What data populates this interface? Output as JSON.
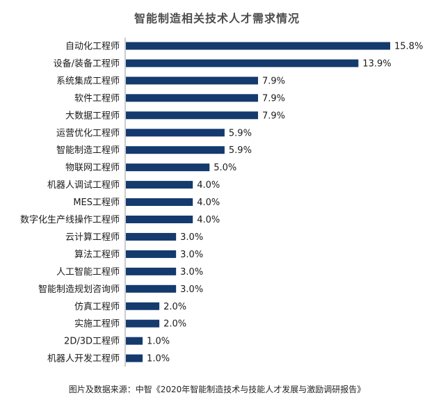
{
  "title": "智能制造相关技术人才需求情况",
  "source": "图片及数据来源：中智《2020年智能制造技术与技能人才发展与激励调研报告》",
  "colors": {
    "bar": "#143a6e",
    "axis": "#9a9a9a"
  },
  "chart_data": {
    "type": "bar",
    "orientation": "horizontal",
    "title": "智能制造相关技术人才需求情况",
    "categories": [
      "自动化工程师",
      "设备/装备工程师",
      "系统集成工程师",
      "软件工程师",
      "大数据工程师",
      "运营优化工程师",
      "智能制造工程师",
      "物联网工程师",
      "机器人调试工程师",
      "MES工程师",
      "数字化生产线操作工程师",
      "云计算工程师",
      "算法工程师",
      "人工智能工程师",
      "智能制造规划咨询师",
      "仿真工程师",
      "实施工程师",
      "2D/3D工程师",
      "机器人开发工程师"
    ],
    "values": [
      15.8,
      13.9,
      7.9,
      7.9,
      7.9,
      5.9,
      5.9,
      5.0,
      4.0,
      4.0,
      4.0,
      3.0,
      3.0,
      3.0,
      3.0,
      2.0,
      2.0,
      1.0,
      1.0
    ],
    "value_labels": [
      "15.8%",
      "13.9%",
      "7.9%",
      "7.9%",
      "7.9%",
      "5.9%",
      "5.9%",
      "5.0%",
      "4.0%",
      "4.0%",
      "4.0%",
      "3.0%",
      "3.0%",
      "3.0%",
      "3.0%",
      "2.0%",
      "2.0%",
      "1.0%",
      "1.0%"
    ],
    "unit": "%",
    "xlim": [
      0,
      15.8
    ],
    "grid": false,
    "legend": "none"
  }
}
